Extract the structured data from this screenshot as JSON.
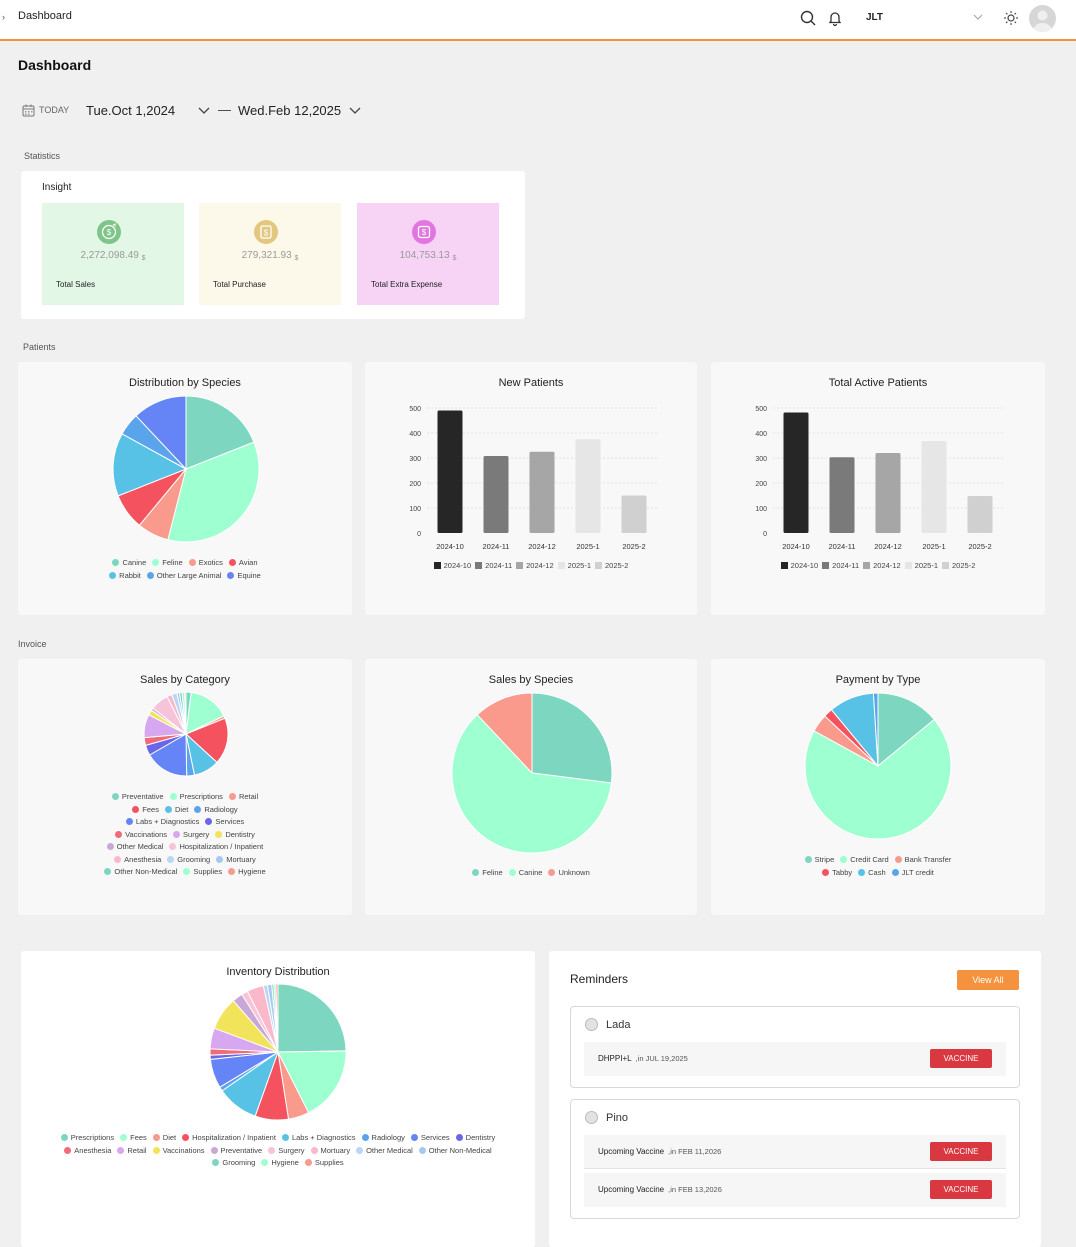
{
  "topbar": {
    "breadcrumb": "Dashboard",
    "location": "JLT",
    "icons": [
      "search-icon",
      "bell-icon",
      "chevron-down-icon",
      "sun-icon",
      "avatar"
    ]
  },
  "page": {
    "title": "Dashboard",
    "date_range": {
      "today_label": "TODAY",
      "start": "Tue.Oct 1,2024",
      "separator": "—",
      "end": "Wed.Feb 12,2025"
    }
  },
  "statistics": {
    "section_label": "Statistics",
    "card_title": "Insight",
    "stats": [
      {
        "value": "2,272,098.49",
        "unit": "$",
        "label": "Total Sales",
        "bg": "#e3f7e6",
        "icon_color": "#7fc58a",
        "icon": "dollar-cycle-icon"
      },
      {
        "value": "279,321.93",
        "unit": "$",
        "label": "Total Purchase",
        "bg": "#fdf9ea",
        "icon_color": "#e2c77e",
        "icon": "dollar-doc-icon"
      },
      {
        "value": "104,753.13",
        "unit": "$",
        "label": "Total Extra Expense",
        "bg": "#f7d3f5",
        "icon_color": "#e276e0",
        "icon": "dollar-box-icon"
      }
    ]
  },
  "patients_section": {
    "label": "Patients"
  },
  "invoice_section": {
    "label": "Invoice"
  },
  "chart_data": [
    {
      "id": "species",
      "type": "pie",
      "title": "Distribution by Species",
      "slices": [
        {
          "name": "Canine",
          "value": 19,
          "color": "#7dd6c0"
        },
        {
          "name": "Feline",
          "value": 35,
          "color": "#9effd0"
        },
        {
          "name": "Exotics",
          "value": 7,
          "color": "#f99a8d"
        },
        {
          "name": "Avian",
          "value": 8,
          "color": "#f4525e"
        },
        {
          "name": "Rabbit",
          "value": 14,
          "color": "#58c2e6"
        },
        {
          "name": "Other Large Animal",
          "value": 5,
          "color": "#5aa4ec"
        },
        {
          "name": "Equine",
          "value": 12,
          "color": "#6584f6"
        }
      ]
    },
    {
      "id": "new_patients",
      "type": "bar",
      "title": "New Patients",
      "categories": [
        "2024-10",
        "2024-11",
        "2024-12",
        "2025-1",
        "2025-2"
      ],
      "values": [
        490,
        308,
        325,
        375,
        150
      ],
      "colors": [
        "#262626",
        "#7a7a7a",
        "#a6a6a6",
        "#e6e6e6",
        "#d0d0d0"
      ],
      "ylim": [
        0,
        500
      ],
      "yticks": [
        0,
        100,
        200,
        300,
        400,
        500
      ]
    },
    {
      "id": "active_patients",
      "type": "bar",
      "title": "Total Active Patients",
      "categories": [
        "2024-10",
        "2024-11",
        "2024-12",
        "2025-1",
        "2025-2"
      ],
      "values": [
        482,
        303,
        320,
        368,
        148
      ],
      "colors": [
        "#262626",
        "#7a7a7a",
        "#a6a6a6",
        "#e6e6e6",
        "#d0d0d0"
      ],
      "ylim": [
        0,
        500
      ],
      "yticks": [
        0,
        100,
        200,
        300,
        400,
        500
      ]
    },
    {
      "id": "sales_category",
      "type": "pie",
      "title": "Sales by Category",
      "slices": [
        {
          "name": "Preventative",
          "value": 2,
          "color": "#7dd6c0"
        },
        {
          "name": "Prescriptions",
          "value": 16,
          "color": "#9effd0"
        },
        {
          "name": "Retail",
          "value": 1,
          "color": "#f99a8d"
        },
        {
          "name": "Fees",
          "value": 18,
          "color": "#f4525e"
        },
        {
          "name": "Diet",
          "value": 10,
          "color": "#58c2e6"
        },
        {
          "name": "Radiology",
          "value": 3,
          "color": "#5aa4ec"
        },
        {
          "name": "Labs + Diagnostics",
          "value": 17,
          "color": "#6584f6"
        },
        {
          "name": "Services",
          "value": 4,
          "color": "#6a66e8"
        },
        {
          "name": "Vaccinations",
          "value": 3,
          "color": "#f06a78"
        },
        {
          "name": "Surgery",
          "value": 9,
          "color": "#d7a7f0"
        },
        {
          "name": "Dentistry",
          "value": 2,
          "color": "#f2e45a"
        },
        {
          "name": "Other Medical",
          "value": 1,
          "color": "#c9a7d6"
        },
        {
          "name": "Hospitalization / Inpatient",
          "value": 7,
          "color": "#f7c3d8"
        },
        {
          "name": "Anesthesia",
          "value": 2,
          "color": "#fbb8cb"
        },
        {
          "name": "Grooming",
          "value": 2,
          "color": "#b9d6f3"
        },
        {
          "name": "Mortuary",
          "value": 1,
          "color": "#a6c8f2"
        },
        {
          "name": "Other Non-Medical",
          "value": 1,
          "color": "#7dd6c0"
        },
        {
          "name": "Supplies",
          "value": 1,
          "color": "#9effd0"
        },
        {
          "name": "Hygiene",
          "value": 0.5,
          "color": "#f99a8d"
        }
      ]
    },
    {
      "id": "sales_species",
      "type": "pie",
      "title": "Sales by Species",
      "slices": [
        {
          "name": "Feline",
          "value": 27,
          "color": "#7dd6c0"
        },
        {
          "name": "Canine",
          "value": 61,
          "color": "#9effd0"
        },
        {
          "name": "Unknown",
          "value": 12,
          "color": "#f99a8d"
        }
      ]
    },
    {
      "id": "payment_type",
      "type": "pie",
      "title": "Payment by Type",
      "slices": [
        {
          "name": "Stripe",
          "value": 14,
          "color": "#7dd6c0"
        },
        {
          "name": "Credit Card",
          "value": 69,
          "color": "#9effd0"
        },
        {
          "name": "Bank Transfer",
          "value": 4,
          "color": "#f99a8d"
        },
        {
          "name": "Tabby",
          "value": 2,
          "color": "#f4525e"
        },
        {
          "name": "Cash",
          "value": 10,
          "color": "#58c2e6"
        },
        {
          "name": "JLT credit",
          "value": 1,
          "color": "#5aa4ec"
        }
      ]
    },
    {
      "id": "inventory",
      "type": "pie",
      "title": "Inventory Distribution",
      "slices": [
        {
          "name": "Prescriptions",
          "value": 25,
          "color": "#7dd6c0"
        },
        {
          "name": "Fees",
          "value": 18,
          "color": "#9effd0"
        },
        {
          "name": "Diet",
          "value": 5,
          "color": "#f99a8d"
        },
        {
          "name": "Hospitalization / Inpatient",
          "value": 8,
          "color": "#f4525e"
        },
        {
          "name": "Labs + Diagnostics",
          "value": 10,
          "color": "#58c2e6"
        },
        {
          "name": "Radiology",
          "value": 1,
          "color": "#5aa4ec"
        },
        {
          "name": "Services",
          "value": 7,
          "color": "#6584f6"
        },
        {
          "name": "Dentistry",
          "value": 1,
          "color": "#6a66e8"
        },
        {
          "name": "Anesthesia",
          "value": 1.5,
          "color": "#f06a78"
        },
        {
          "name": "Retail",
          "value": 5,
          "color": "#d7a7f0"
        },
        {
          "name": "Vaccinations",
          "value": 8,
          "color": "#f2e45a"
        },
        {
          "name": "Preventative",
          "value": 2.5,
          "color": "#c9a7d6"
        },
        {
          "name": "Surgery",
          "value": 1.5,
          "color": "#f7c3d8"
        },
        {
          "name": "Mortuary",
          "value": 4,
          "color": "#fbb8cb"
        },
        {
          "name": "Other Medical",
          "value": 1,
          "color": "#b9d6f3"
        },
        {
          "name": "Other Non-Medical",
          "value": 1,
          "color": "#a6c8f2"
        },
        {
          "name": "Grooming",
          "value": 0.5,
          "color": "#7dd6c0"
        },
        {
          "name": "Hygiene",
          "value": 0.5,
          "color": "#9effd0"
        },
        {
          "name": "Supplies",
          "value": 0.5,
          "color": "#f99a8d"
        }
      ]
    }
  ],
  "reminders": {
    "title": "Reminders",
    "view_all_label": "View All",
    "pets": [
      {
        "name": "Lada",
        "items": [
          {
            "label": "DHPPI+L",
            "date": ",in JUL 19,2025",
            "button": "VACCINE"
          }
        ]
      },
      {
        "name": "Pino",
        "items": [
          {
            "label": "Upcoming Vaccine",
            "date": ",in FEB 11,2026",
            "button": "VACCINE"
          },
          {
            "label": "Upcoming Vaccine",
            "date": ",in FEB 13,2026",
            "button": "VACCINE"
          }
        ]
      }
    ]
  }
}
